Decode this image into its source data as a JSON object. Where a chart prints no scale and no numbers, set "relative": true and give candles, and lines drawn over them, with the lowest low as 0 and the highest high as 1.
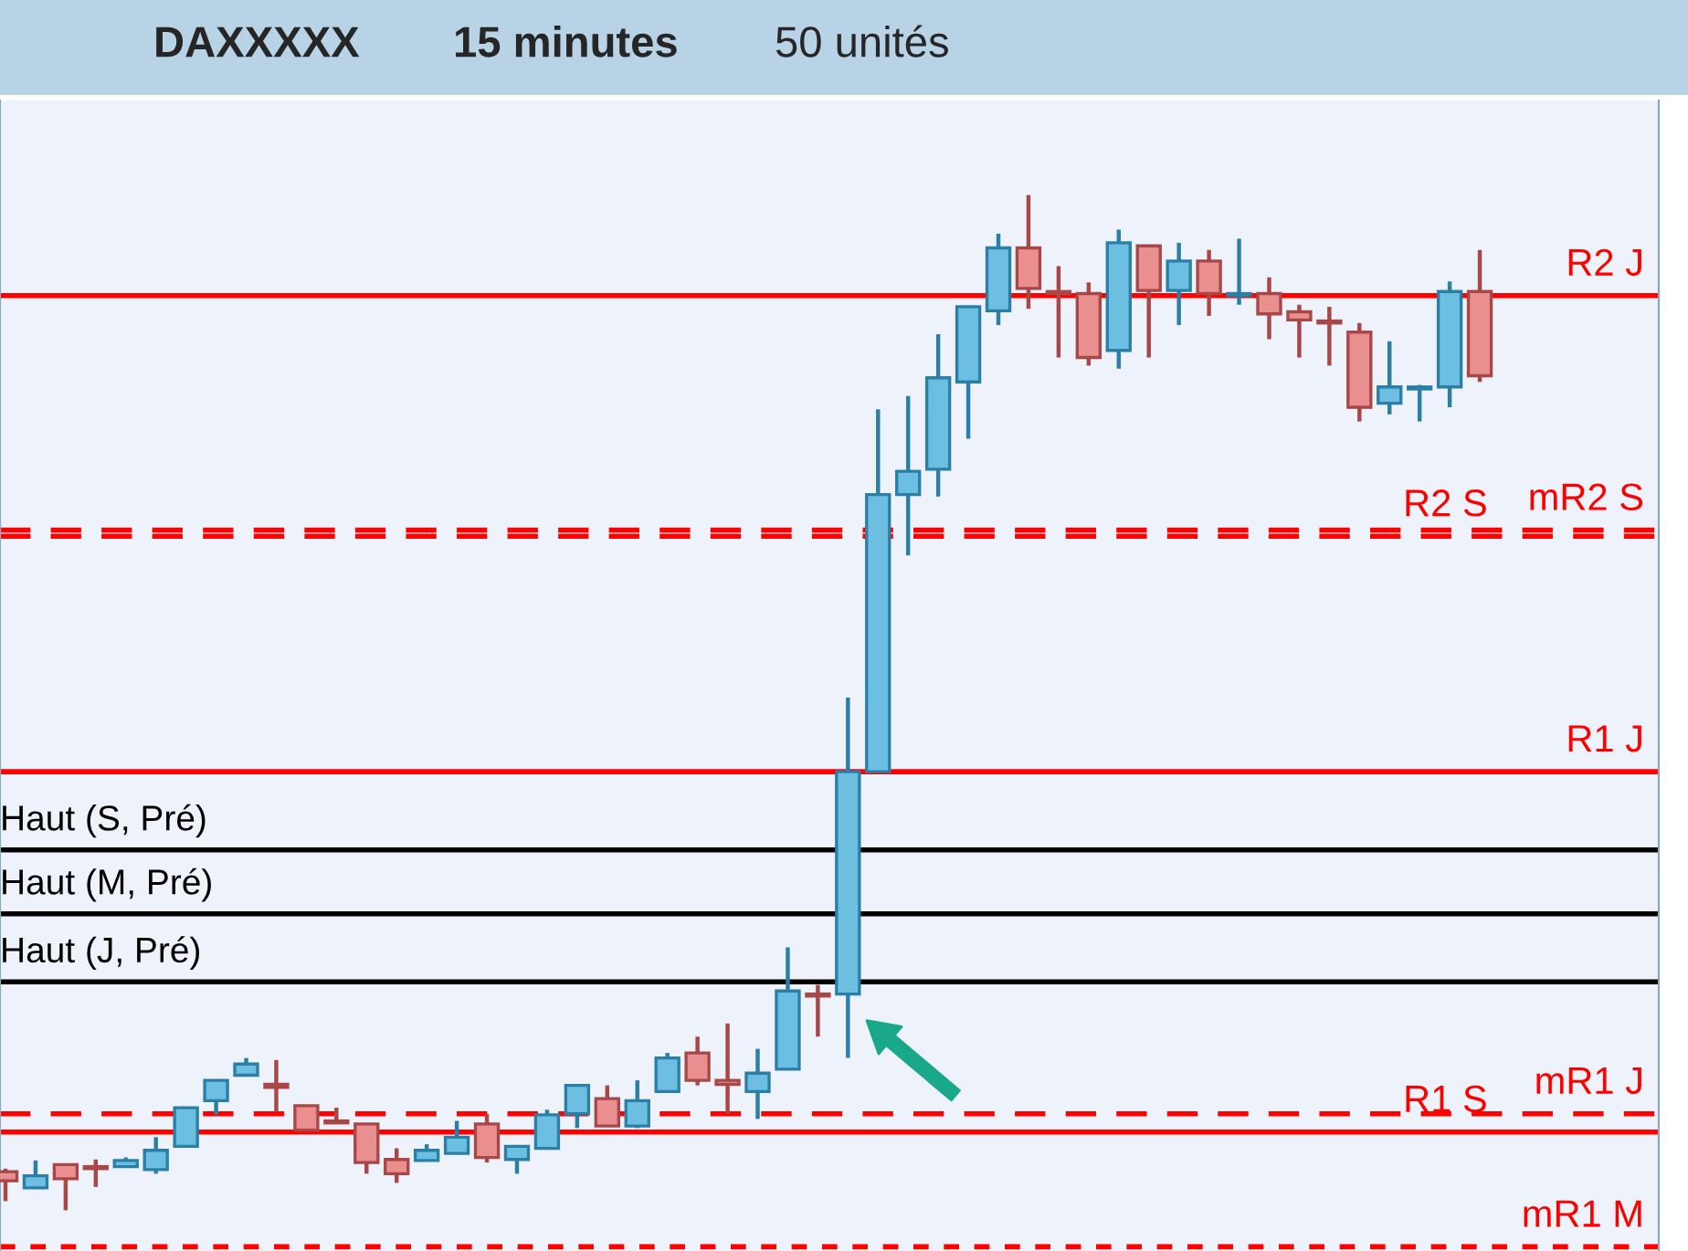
{
  "chart_data": {
    "type": "candlestick",
    "title": "DAXXXXX",
    "annotations": [
      "15 minutes",
      "50 unités"
    ],
    "relative": true,
    "categories": [
      null,
      null,
      null,
      null,
      null,
      null,
      null,
      null,
      null,
      null,
      null,
      null,
      null,
      null,
      null,
      null,
      null,
      null,
      null,
      null,
      null,
      null,
      null,
      null,
      null,
      null,
      null,
      null,
      null,
      null,
      null,
      null,
      null,
      null,
      null,
      null,
      null,
      null,
      null,
      null,
      null,
      null,
      null,
      null,
      null,
      null,
      null,
      null,
      null,
      null
    ],
    "ohlc": [
      [
        0.038,
        0.041,
        0.009,
        0.029
      ],
      [
        0.022,
        0.049,
        0.022,
        0.034
      ],
      [
        0.045,
        0.045,
        0,
        0.031
      ],
      [
        0.043,
        0.05,
        0.023,
        0.041
      ],
      [
        0.043,
        0.052,
        0.043,
        0.049
      ],
      [
        0.04,
        0.072,
        0.036,
        0.059
      ],
      [
        0.063,
        0.101,
        0.063,
        0.101
      ],
      [
        0.108,
        0.128,
        0.094,
        0.128
      ],
      [
        0.133,
        0.15,
        0.133,
        0.144
      ],
      [
        0.124,
        0.148,
        0.097,
        0.121
      ],
      [
        0.103,
        0.103,
        0.079,
        0.079
      ],
      [
        0.088,
        0.101,
        0.086,
        0.086
      ],
      [
        0.085,
        0.085,
        0.036,
        0.047
      ],
      [
        0.05,
        0.061,
        0.027,
        0.036
      ],
      [
        0.049,
        0.065,
        0.049,
        0.059
      ],
      [
        0.056,
        0.088,
        0.056,
        0.072
      ],
      [
        0.085,
        0.095,
        0.047,
        0.052
      ],
      [
        0.05,
        0.063,
        0.036,
        0.063
      ],
      [
        0.061,
        0.099,
        0.061,
        0.094
      ],
      [
        0.095,
        0.123,
        0.081,
        0.123
      ],
      [
        0.11,
        0.123,
        0.083,
        0.083
      ],
      [
        0.083,
        0.128,
        0.081,
        0.108
      ],
      [
        0.117,
        0.155,
        0.117,
        0.15
      ],
      [
        0.155,
        0.171,
        0.123,
        0.128
      ],
      [
        0.128,
        0.184,
        0.095,
        0.124
      ],
      [
        0.117,
        0.159,
        0.09,
        0.135
      ],
      [
        0.139,
        0.259,
        0.139,
        0.216
      ],
      [
        0.213,
        0.222,
        0.171,
        0.211
      ],
      [
        0.213,
        0.505,
        0.15,
        0.432
      ],
      [
        0.432,
        0.789,
        0.432,
        0.705
      ],
      [
        0.705,
        0.802,
        0.645,
        0.728
      ],
      [
        0.73,
        0.863,
        0.703,
        0.82
      ],
      [
        0.816,
        0.89,
        0.76,
        0.89
      ],
      [
        0.886,
        0.962,
        0.872,
        0.948
      ],
      [
        0.948,
        1,
        0.888,
        0.908
      ],
      [
        0.905,
        0.93,
        0.84,
        0.903
      ],
      [
        0.903,
        0.914,
        0.832,
        0.84
      ],
      [
        0.847,
        0.966,
        0.829,
        0.953
      ],
      [
        0.95,
        0.95,
        0.84,
        0.906
      ],
      [
        0.906,
        0.953,
        0.872,
        0.935
      ],
      [
        0.935,
        0.946,
        0.881,
        0.903
      ],
      [
        0.901,
        0.957,
        0.892,
        0.903
      ],
      [
        0.903,
        0.919,
        0.858,
        0.883
      ],
      [
        0.885,
        0.892,
        0.84,
        0.877
      ],
      [
        0.876,
        0.89,
        0.832,
        0.874
      ],
      [
        0.865,
        0.874,
        0.777,
        0.791
      ],
      [
        0.795,
        0.856,
        0.784,
        0.811
      ],
      [
        0.809,
        0.813,
        0.777,
        0.811
      ],
      [
        0.811,
        0.915,
        0.791,
        0.905
      ],
      [
        0.905,
        0.946,
        0.816,
        0.822
      ]
    ],
    "ref_lines": [
      {
        "axis": "y",
        "value": 0.901,
        "label": "R2 J",
        "color": "#ff0000",
        "line_style": "solid"
      },
      {
        "axis": "y",
        "value": 0.67,
        "label": "mR2 S",
        "color": "#ff0000",
        "line_style": "dashed"
      },
      {
        "axis": "y",
        "value": 0.664,
        "label": "R2 S",
        "color": "#ff0000",
        "line_style": "dashed"
      },
      {
        "axis": "y",
        "value": 0.432,
        "label": "R1 J",
        "color": "#ff0000",
        "line_style": "solid"
      },
      {
        "axis": "y",
        "value": 0.355,
        "label": "Haut (S, Pré)",
        "color": "#000000",
        "line_style": "solid"
      },
      {
        "axis": "y",
        "value": 0.292,
        "label": "Haut (M, Pré)",
        "color": "#000000",
        "line_style": "solid"
      },
      {
        "axis": "y",
        "value": 0.225,
        "label": "Haut (J, Pré)",
        "color": "#000000",
        "line_style": "solid"
      },
      {
        "axis": "y",
        "value": 0.095,
        "label": "mR1 J",
        "color": "#ff0000",
        "line_style": "dashed"
      },
      {
        "axis": "y",
        "value": 0.077,
        "label": "R1 S",
        "color": "#ff0000",
        "line_style": "solid"
      },
      {
        "axis": "y",
        "value": -0.036,
        "label": "mR1 M",
        "color": "#ff0000",
        "line_style": "dotted"
      }
    ]
  }
}
